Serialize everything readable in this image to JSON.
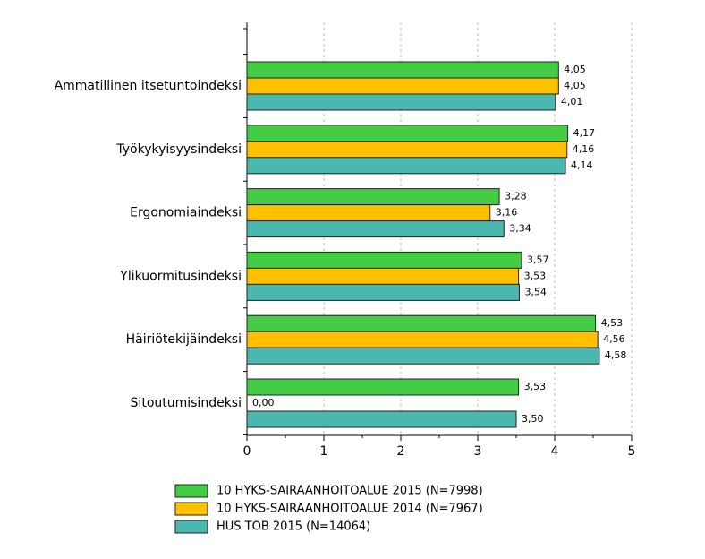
{
  "chart_data": {
    "type": "hbar",
    "categories": [
      "Ammatillinen itsetuntoindeksi",
      "Työkykyisyysindeksi",
      "Ergonomiaindeksi",
      "Ylikuormitusindeksi",
      "Häiriötekijäindeksi",
      "Sitoutumisindeksi"
    ],
    "series": [
      {
        "name": "10 HYKS-SAIRAANHOITOALUE 2015 (N=7998)",
        "color": "#44cc44",
        "values": [
          4.05,
          4.17,
          3.28,
          3.57,
          4.53,
          3.53
        ],
        "value_labels": [
          "4,05",
          "4,17",
          "3,28",
          "3,57",
          "4,53",
          "3,53"
        ]
      },
      {
        "name": "10 HYKS-SAIRAANHOITOALUE 2014 (N=7967)",
        "color": "#ffc000",
        "values": [
          4.05,
          4.16,
          3.16,
          3.53,
          4.56,
          0
        ],
        "value_labels": [
          "4,05",
          "4,16",
          "3,16",
          "3,53",
          "4,56",
          "0,00"
        ]
      },
      {
        "name": "HUS TOB 2015 (N=14064)",
        "color": "#4bb8b0",
        "values": [
          4.01,
          4.14,
          3.34,
          3.54,
          4.58,
          3.5
        ],
        "value_labels": [
          "4,01",
          "4,14",
          "3,34",
          "3,54",
          "4,58",
          "3,50"
        ]
      }
    ],
    "xlim": [
      0,
      5
    ],
    "xticks": [
      0,
      1,
      2,
      3,
      4,
      5
    ],
    "grid": true
  }
}
